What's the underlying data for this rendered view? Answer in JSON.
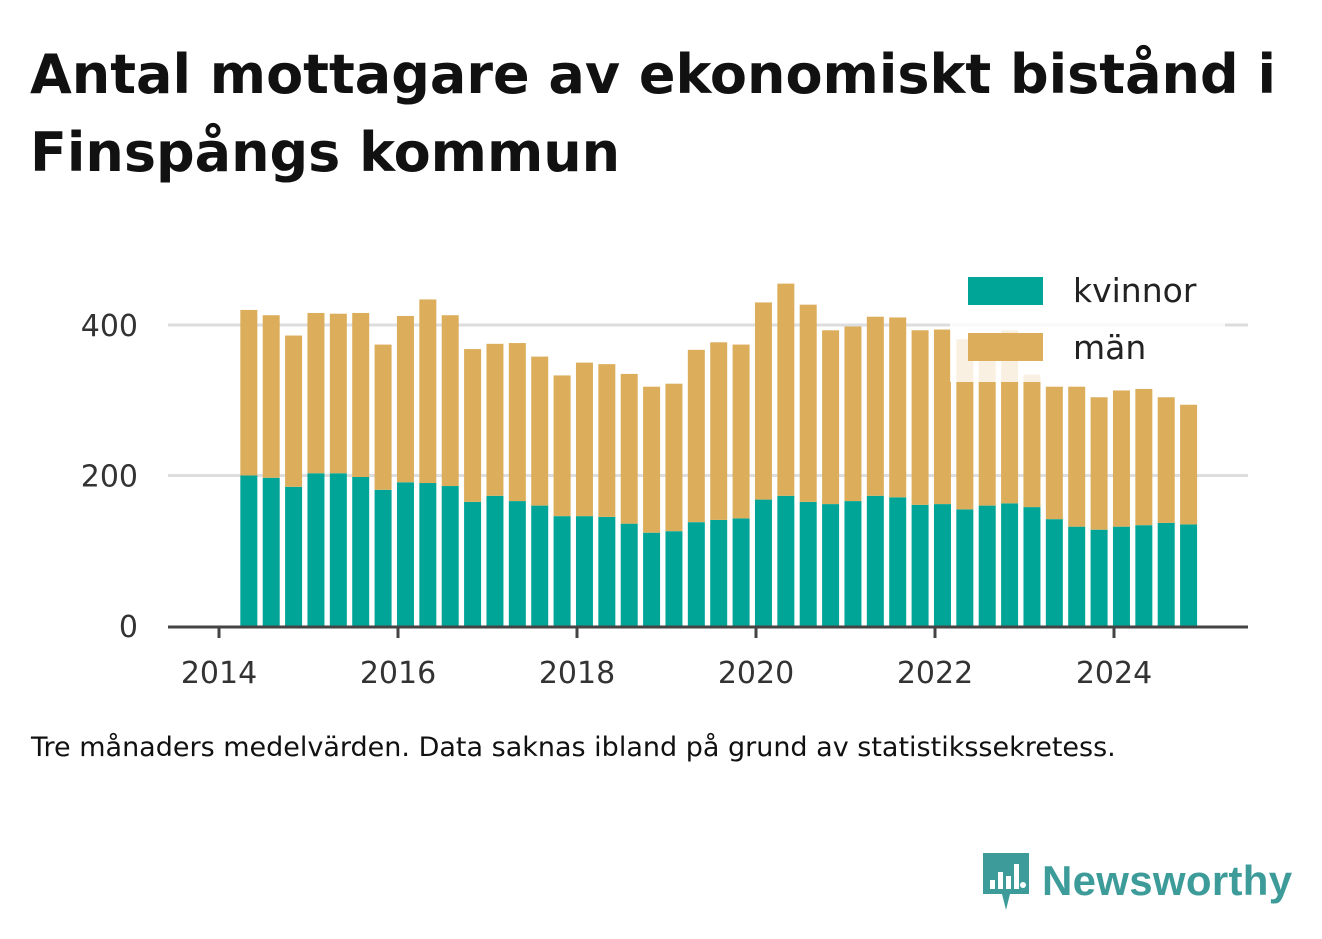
{
  "title": "Antal mottagare av ekonomiskt bistånd i Finspångs kommun",
  "caption": "Tre månaders medelvärden. Data saknas ibland på grund av statistikssekretess.",
  "brand": {
    "name": "Newsworthy",
    "icon": "newsworthy-logo-icon",
    "color": "#3d9c99"
  },
  "colors": {
    "kvinnor": "#00a598",
    "man": "#dcae5c",
    "grid": "#dddddd",
    "axis": "#444444"
  },
  "chart_data": {
    "type": "bar",
    "stacked": true,
    "x_unit": "quarter start date",
    "x": [
      "2014-04",
      "2014-07",
      "2014-10",
      "2015-01",
      "2015-04",
      "2015-07",
      "2015-10",
      "2016-01",
      "2016-04",
      "2016-07",
      "2016-10",
      "2017-01",
      "2017-04",
      "2017-07",
      "2017-10",
      "2018-01",
      "2018-04",
      "2018-07",
      "2018-10",
      "2019-01",
      "2019-04",
      "2019-07",
      "2019-10",
      "2020-01",
      "2020-04",
      "2020-07",
      "2020-10",
      "2021-01",
      "2021-04",
      "2021-07",
      "2021-10",
      "2022-01",
      "2022-04",
      "2022-07",
      "2022-10",
      "2023-01",
      "2023-04",
      "2023-07",
      "2023-10",
      "2024-01",
      "2024-04",
      "2024-07",
      "2024-10"
    ],
    "series": [
      {
        "name": "kvinnor",
        "values": [
          200,
          197,
          185,
          203,
          203,
          198,
          181,
          191,
          190,
          186,
          165,
          173,
          166,
          160,
          146,
          146,
          145,
          136,
          124,
          126,
          138,
          141,
          143,
          168,
          173,
          165,
          162,
          166,
          173,
          171,
          161,
          162,
          155,
          160,
          163,
          158,
          142,
          132,
          128,
          132,
          134,
          137,
          135
        ]
      },
      {
        "name": "män",
        "values": [
          220,
          216,
          201,
          213,
          212,
          218,
          193,
          221,
          244,
          227,
          203,
          202,
          210,
          198,
          187,
          204,
          203,
          199,
          194,
          196,
          229,
          236,
          231,
          262,
          282,
          262,
          231,
          232,
          238,
          239,
          232,
          232,
          226,
          222,
          230,
          176,
          176,
          186,
          176,
          181,
          181,
          167,
          159
        ]
      }
    ],
    "x_ticks": [
      "2014",
      "2016",
      "2018",
      "2020",
      "2022",
      "2024"
    ],
    "y_ticks": [
      "0",
      "200",
      "400"
    ],
    "ylim": [
      0,
      480
    ],
    "grid": true,
    "legend": {
      "placement": "top-right",
      "entries": [
        "kvinnor",
        "män"
      ]
    }
  }
}
